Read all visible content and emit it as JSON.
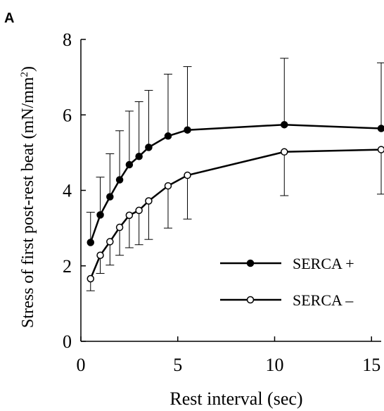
{
  "panel_label": "A",
  "chart_data": {
    "type": "line",
    "title": "",
    "xlabel": "Rest interval (sec)",
    "ylabel": "Stress of first post-rest beat (mN/mm",
    "ylabel_superscript": "2",
    "ylabel_close": ")",
    "xlim": [
      0,
      15.5
    ],
    "ylim": [
      0,
      8
    ],
    "xticks": [
      0,
      5,
      10,
      15
    ],
    "yticks": [
      0,
      2,
      4,
      6,
      8
    ],
    "grid": false,
    "legend_position": "bottom-right",
    "series": [
      {
        "name": "SERCA +",
        "marker": "filled-circle",
        "color": "#000000",
        "x": [
          0.5,
          1,
          1.5,
          2,
          2.5,
          3,
          3.5,
          4.5,
          5.5,
          10.5,
          15.5
        ],
        "y": [
          2.62,
          3.35,
          3.83,
          4.28,
          4.68,
          4.9,
          5.14,
          5.44,
          5.6,
          5.74,
          5.64
        ],
        "err_upper": [
          3.42,
          4.35,
          4.97,
          5.58,
          6.1,
          6.35,
          6.65,
          7.08,
          7.28,
          7.5,
          7.38
        ]
      },
      {
        "name": "SERCA –",
        "marker": "open-circle",
        "color": "#000000",
        "x": [
          0.5,
          1,
          1.5,
          2,
          2.5,
          3,
          3.5,
          4.5,
          5.5,
          10.5,
          15.5
        ],
        "y": [
          1.66,
          2.28,
          2.64,
          3.02,
          3.34,
          3.47,
          3.72,
          4.12,
          4.4,
          5.02,
          5.08
        ],
        "err_lower": [
          1.34,
          1.8,
          2.02,
          2.28,
          2.48,
          2.56,
          2.7,
          3.0,
          3.24,
          3.86,
          3.9
        ]
      }
    ]
  }
}
